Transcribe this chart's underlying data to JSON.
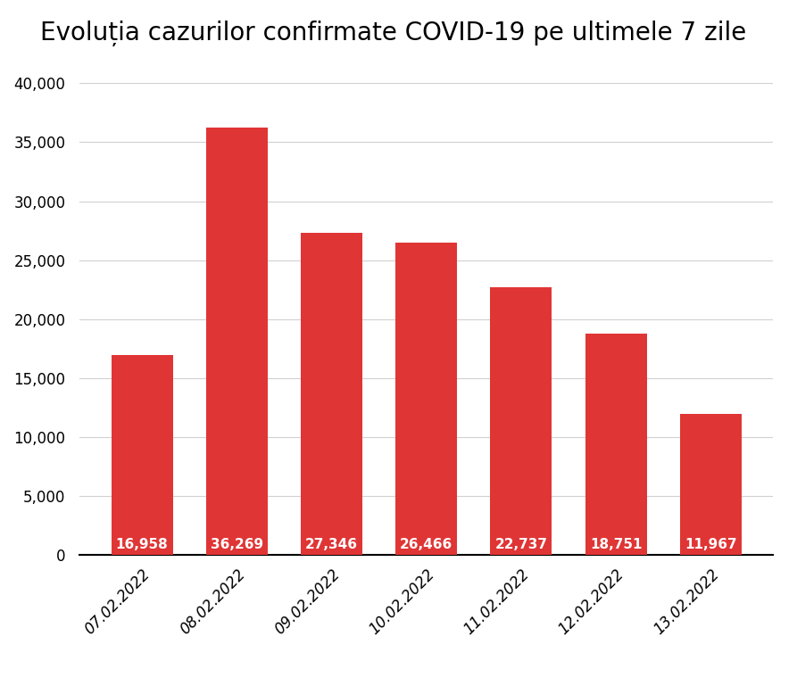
{
  "title": "Evoluția cazurilor confirmate COVID-19 pe ultimele 7 zile",
  "categories": [
    "07.02.2022",
    "08.02.2022",
    "09.02.2022",
    "10.02.2022",
    "11.02.2022",
    "12.02.2022",
    "13.02.2022"
  ],
  "values": [
    16958,
    36269,
    27346,
    26466,
    22737,
    18751,
    11967
  ],
  "bar_color": "#e03535",
  "label_color": "#ffffff",
  "ylim": [
    0,
    40000
  ],
  "yticks": [
    0,
    5000,
    10000,
    15000,
    20000,
    25000,
    30000,
    35000,
    40000
  ],
  "background_color": "#ffffff",
  "title_fontsize": 20,
  "tick_fontsize": 12,
  "value_label_fontsize": 11
}
